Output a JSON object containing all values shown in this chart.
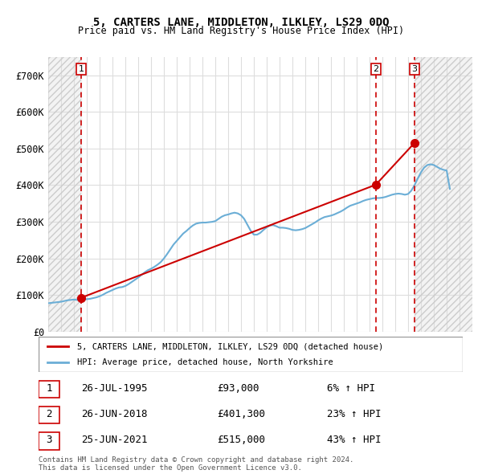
{
  "title": "5, CARTERS LANE, MIDDLETON, ILKLEY, LS29 0DQ",
  "subtitle": "Price paid vs. HM Land Registry's House Price Index (HPI)",
  "ylabel": "",
  "ylim": [
    0,
    750000
  ],
  "yticks": [
    0,
    100000,
    200000,
    300000,
    400000,
    500000,
    600000,
    700000
  ],
  "ytick_labels": [
    "£0",
    "£100K",
    "£200K",
    "£300K",
    "£400K",
    "£500K",
    "£600K",
    "£700K"
  ],
  "xlim_start": 1993.0,
  "xlim_end": 2026.0,
  "hpi_color": "#6baed6",
  "price_color": "#cc0000",
  "marker_color": "#cc0000",
  "dashed_color": "#cc0000",
  "hatch_color": "#cccccc",
  "background_color": "#ffffff",
  "grid_color": "#dddddd",
  "legend_items": [
    "5, CARTERS LANE, MIDDLETON, ILKLEY, LS29 0DQ (detached house)",
    "HPI: Average price, detached house, North Yorkshire"
  ],
  "transactions": [
    {
      "num": 1,
      "date": "26-JUL-1995",
      "price": 93000,
      "pct": "6%",
      "year": 1995.57
    },
    {
      "num": 2,
      "date": "26-JUN-2018",
      "price": 401300,
      "pct": "23%",
      "year": 2018.49
    },
    {
      "num": 3,
      "date": "25-JUN-2021",
      "price": 515000,
      "pct": "43%",
      "year": 2021.49
    }
  ],
  "copyright_text": "Contains HM Land Registry data © Crown copyright and database right 2024.\nThis data is licensed under the Open Government Licence v3.0.",
  "hpi_data": {
    "years": [
      1993.0,
      1993.25,
      1993.5,
      1993.75,
      1994.0,
      1994.25,
      1994.5,
      1994.75,
      1995.0,
      1995.25,
      1995.5,
      1995.75,
      1996.0,
      1996.25,
      1996.5,
      1996.75,
      1997.0,
      1997.25,
      1997.5,
      1997.75,
      1998.0,
      1998.25,
      1998.5,
      1998.75,
      1999.0,
      1999.25,
      1999.5,
      1999.75,
      2000.0,
      2000.25,
      2000.5,
      2000.75,
      2001.0,
      2001.25,
      2001.5,
      2001.75,
      2002.0,
      2002.25,
      2002.5,
      2002.75,
      2003.0,
      2003.25,
      2003.5,
      2003.75,
      2004.0,
      2004.25,
      2004.5,
      2004.75,
      2005.0,
      2005.25,
      2005.5,
      2005.75,
      2006.0,
      2006.25,
      2006.5,
      2006.75,
      2007.0,
      2007.25,
      2007.5,
      2007.75,
      2008.0,
      2008.25,
      2008.5,
      2008.75,
      2009.0,
      2009.25,
      2009.5,
      2009.75,
      2010.0,
      2010.25,
      2010.5,
      2010.75,
      2011.0,
      2011.25,
      2011.5,
      2011.75,
      2012.0,
      2012.25,
      2012.5,
      2012.75,
      2013.0,
      2013.25,
      2013.5,
      2013.75,
      2014.0,
      2014.25,
      2014.5,
      2014.75,
      2015.0,
      2015.25,
      2015.5,
      2015.75,
      2016.0,
      2016.25,
      2016.5,
      2016.75,
      2017.0,
      2017.25,
      2017.5,
      2017.75,
      2018.0,
      2018.25,
      2018.5,
      2018.75,
      2019.0,
      2019.25,
      2019.5,
      2019.75,
      2020.0,
      2020.25,
      2020.5,
      2020.75,
      2021.0,
      2021.25,
      2021.5,
      2021.75,
      2022.0,
      2022.25,
      2022.5,
      2022.75,
      2023.0,
      2023.25,
      2023.5,
      2023.75,
      2024.0,
      2024.25
    ],
    "values": [
      78000,
      79000,
      80000,
      81000,
      82000,
      84000,
      86000,
      87000,
      88000,
      87000,
      87000,
      88000,
      89000,
      90000,
      92000,
      94000,
      97000,
      101000,
      106000,
      110000,
      114000,
      118000,
      121000,
      122000,
      125000,
      130000,
      136000,
      142000,
      148000,
      155000,
      162000,
      168000,
      172000,
      177000,
      183000,
      190000,
      200000,
      212000,
      225000,
      238000,
      248000,
      258000,
      268000,
      275000,
      283000,
      290000,
      295000,
      297000,
      298000,
      298000,
      299000,
      300000,
      302000,
      308000,
      314000,
      318000,
      320000,
      323000,
      325000,
      323000,
      318000,
      308000,
      292000,
      276000,
      265000,
      265000,
      270000,
      278000,
      285000,
      290000,
      291000,
      288000,
      284000,
      284000,
      283000,
      281000,
      278000,
      277000,
      278000,
      280000,
      283000,
      288000,
      293000,
      298000,
      304000,
      309000,
      313000,
      315000,
      317000,
      320000,
      324000,
      328000,
      333000,
      339000,
      344000,
      347000,
      350000,
      353000,
      357000,
      360000,
      362000,
      364000,
      365000,
      365000,
      366000,
      368000,
      371000,
      374000,
      376000,
      377000,
      376000,
      374000,
      376000,
      385000,
      400000,
      418000,
      435000,
      448000,
      455000,
      457000,
      455000,
      450000,
      445000,
      442000,
      440000,
      390000
    ]
  }
}
